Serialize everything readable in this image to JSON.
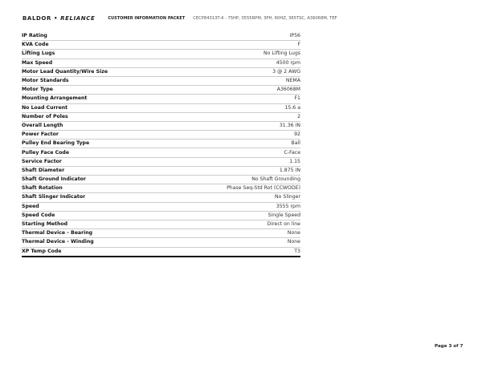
{
  "header": {
    "brand_left": "BALDOR",
    "brand_sep": "•",
    "brand_right": "RELIANCE",
    "title": "CUSTOMER INFORMATION PACKET",
    "description": "CECP84313T-4 - 75HP, 3555RPM, 3PH, 60HZ, 365TSC, A36068M, TEF"
  },
  "specs": [
    {
      "label": "IP Rating",
      "value": "IP56"
    },
    {
      "label": "KVA Code",
      "value": "F"
    },
    {
      "label": "Lifting Lugs",
      "value": "No Lifting Lugs"
    },
    {
      "label": "Max Speed",
      "value": "4500 rpm"
    },
    {
      "label": "Motor Lead Quantity/Wire Size",
      "value": "3 @ 2 AWG"
    },
    {
      "label": "Motor Standards",
      "value": "NEMA"
    },
    {
      "label": "Motor Type",
      "value": "A36068M"
    },
    {
      "label": "Mounting Arrangement",
      "value": "F1"
    },
    {
      "label": "No Load Current",
      "value": "15.6 a"
    },
    {
      "label": "Number of Poles",
      "value": "2"
    },
    {
      "label": "Overall Length",
      "value": "31.36 IN"
    },
    {
      "label": "Power Factor",
      "value": "92"
    },
    {
      "label": "Pulley End Bearing Type",
      "value": "Ball"
    },
    {
      "label": "Pulley Face Code",
      "value": "C-Face"
    },
    {
      "label": "Service Factor",
      "value": "1.15"
    },
    {
      "label": "Shaft Diameter",
      "value": "1.875 IN"
    },
    {
      "label": "Shaft Ground Indicator",
      "value": "No Shaft Grounding"
    },
    {
      "label": "Shaft Rotation",
      "value": "Phase Seq-Std Rot (CCWODE)"
    },
    {
      "label": "Shaft Slinger Indicator",
      "value": "No Slinger"
    },
    {
      "label": "Speed",
      "value": "3555 rpm"
    },
    {
      "label": "Speed Code",
      "value": "Single Speed"
    },
    {
      "label": "Starting Method",
      "value": "Direct on line"
    },
    {
      "label": "Thermal Device - Bearing",
      "value": "None"
    },
    {
      "label": "Thermal Device - Winding",
      "value": "None"
    },
    {
      "label": "XP Temp Code",
      "value": "T3"
    }
  ],
  "footer": {
    "page": "Page 3 of 7"
  }
}
